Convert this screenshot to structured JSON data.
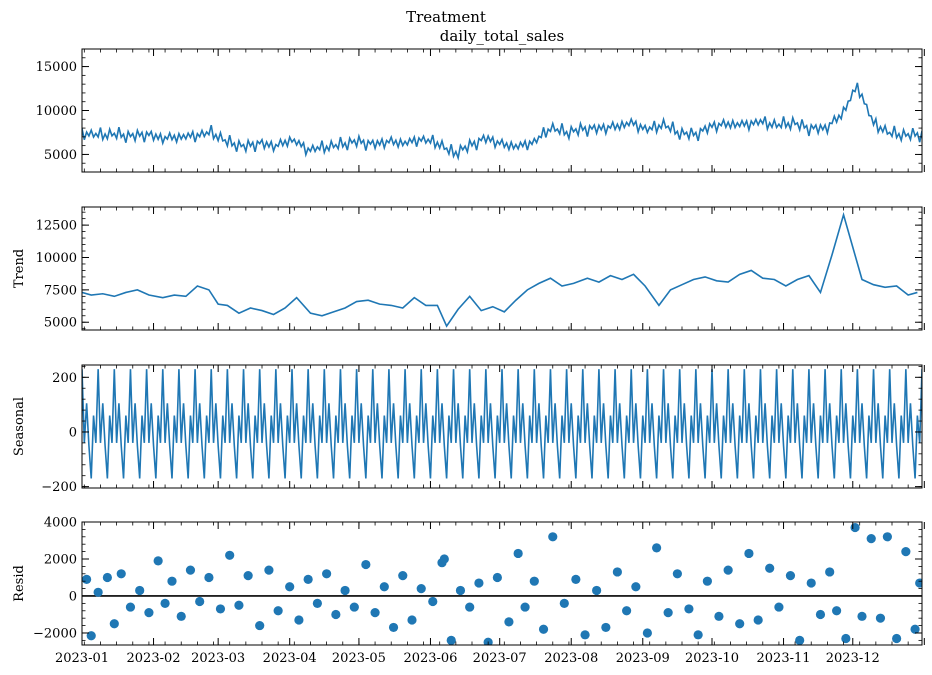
{
  "figure": {
    "suptitle": "Treatment",
    "series_title": "daily_total_sales"
  },
  "colors": {
    "line": "#1f77b4",
    "axis": "#000000",
    "zero_line": "#000000"
  },
  "chart_data": [
    {
      "type": "line",
      "title": "daily_total_sales",
      "xlabel": "",
      "ylabel": "",
      "ylim": [
        3000,
        17000
      ],
      "yticks": [
        5000,
        10000,
        15000
      ],
      "ytick_labels": [
        "5000",
        "10000",
        "15000"
      ],
      "x_range": [
        "2023-01-01",
        "2023-12-31"
      ],
      "series": [
        {
          "resolution": "weekly mean",
          "x": [
            "2023-01-01",
            "2023-01-08",
            "2023-01-15",
            "2023-01-22",
            "2023-01-29",
            "2023-02-05",
            "2023-02-12",
            "2023-02-19",
            "2023-02-26",
            "2023-03-05",
            "2023-03-12",
            "2023-03-19",
            "2023-03-26",
            "2023-04-02",
            "2023-04-09",
            "2023-04-16",
            "2023-04-23",
            "2023-04-30",
            "2023-05-07",
            "2023-05-14",
            "2023-05-21",
            "2023-05-28",
            "2023-06-04",
            "2023-06-11",
            "2023-06-18",
            "2023-06-25",
            "2023-07-02",
            "2023-07-09",
            "2023-07-16",
            "2023-07-23",
            "2023-07-30",
            "2023-08-06",
            "2023-08-13",
            "2023-08-20",
            "2023-08-27",
            "2023-09-03",
            "2023-09-10",
            "2023-09-17",
            "2023-09-24",
            "2023-10-01",
            "2023-10-08",
            "2023-10-15",
            "2023-10-22",
            "2023-10-29",
            "2023-11-05",
            "2023-11-12",
            "2023-11-19",
            "2023-11-26",
            "2023-12-03",
            "2023-12-10",
            "2023-12-17",
            "2023-12-24",
            "2023-12-31"
          ],
          "values": [
            7400,
            7200,
            7300,
            7100,
            7300,
            6900,
            7000,
            7100,
            7500,
            6400,
            5900,
            6300,
            6000,
            6700,
            5500,
            5800,
            6100,
            6500,
            6200,
            6500,
            6300,
            6700,
            6300,
            5100,
            6000,
            6900,
            6200,
            5900,
            6400,
            8000,
            7500,
            7900,
            8000,
            8200,
            8600,
            7800,
            8400,
            7400,
            7300,
            8300,
            8500,
            8400,
            8700,
            8300,
            8600,
            8000,
            8000,
            9500,
            12800,
            8500,
            7400,
            7200,
            7300
          ]
        }
      ]
    },
    {
      "type": "line",
      "title": "",
      "xlabel": "",
      "ylabel": "Trend",
      "ylim": [
        4400,
        13900
      ],
      "yticks": [
        5000,
        7500,
        10000,
        12500
      ],
      "ytick_labels": [
        "5000",
        "7500",
        "10000",
        "12500"
      ],
      "x_range": [
        "2023-01-01",
        "2023-12-31"
      ],
      "series": [
        {
          "x": [
            "2023-01-01",
            "2023-01-05",
            "2023-01-10",
            "2023-01-15",
            "2023-01-20",
            "2023-01-25",
            "2023-01-30",
            "2023-02-05",
            "2023-02-10",
            "2023-02-15",
            "2023-02-20",
            "2023-02-25",
            "2023-03-01",
            "2023-03-05",
            "2023-03-10",
            "2023-03-15",
            "2023-03-20",
            "2023-03-25",
            "2023-03-30",
            "2023-04-04",
            "2023-04-10",
            "2023-04-15",
            "2023-04-20",
            "2023-04-25",
            "2023-04-30",
            "2023-05-05",
            "2023-05-10",
            "2023-05-15",
            "2023-05-20",
            "2023-05-25",
            "2023-05-30",
            "2023-06-04",
            "2023-06-08",
            "2023-06-13",
            "2023-06-18",
            "2023-06-23",
            "2023-06-28",
            "2023-07-03",
            "2023-07-08",
            "2023-07-13",
            "2023-07-18",
            "2023-07-23",
            "2023-07-28",
            "2023-08-02",
            "2023-08-08",
            "2023-08-13",
            "2023-08-18",
            "2023-08-23",
            "2023-08-28",
            "2023-09-02",
            "2023-09-08",
            "2023-09-13",
            "2023-09-18",
            "2023-09-23",
            "2023-09-28",
            "2023-10-03",
            "2023-10-08",
            "2023-10-13",
            "2023-10-18",
            "2023-10-23",
            "2023-10-28",
            "2023-11-02",
            "2023-11-07",
            "2023-11-12",
            "2023-11-17",
            "2023-11-22",
            "2023-11-27",
            "2023-12-01",
            "2023-12-05",
            "2023-12-10",
            "2023-12-15",
            "2023-12-20",
            "2023-12-25",
            "2023-12-29"
          ],
          "values": [
            7300,
            7100,
            7200,
            7000,
            7300,
            7500,
            7100,
            6900,
            7100,
            7000,
            7800,
            7500,
            6400,
            6300,
            5700,
            6100,
            5900,
            5600,
            6100,
            6900,
            5700,
            5500,
            5800,
            6100,
            6600,
            6700,
            6400,
            6300,
            6100,
            6900,
            6300,
            6300,
            4700,
            6000,
            7000,
            5900,
            6200,
            5800,
            6700,
            7500,
            8000,
            8400,
            7800,
            8000,
            8400,
            8100,
            8600,
            8300,
            8700,
            7800,
            6300,
            7500,
            7900,
            8300,
            8500,
            8200,
            8100,
            8700,
            9000,
            8400,
            8300,
            7800,
            8300,
            8600,
            7300,
            10200,
            13300,
            10800,
            8300,
            7900,
            7700,
            7800,
            7100,
            7300
          ]
        }
      ]
    },
    {
      "type": "line",
      "title": "",
      "xlabel": "",
      "ylabel": "Seasonal",
      "ylim": [
        -205,
        245
      ],
      "yticks": [
        -200,
        0,
        200
      ],
      "ytick_labels": [
        "−200",
        "0",
        "200"
      ],
      "x_range": [
        "2023-01-01",
        "2023-12-31"
      ],
      "period_days": 7,
      "series": [
        {
          "pattern": [
            230,
            -40,
            105,
            -50,
            -170,
            60,
            -40
          ]
        }
      ]
    },
    {
      "type": "scatter",
      "title": "",
      "xlabel": "",
      "ylabel": "Resid",
      "ylim": [
        -2650,
        4000
      ],
      "yticks": [
        -2000,
        0,
        2000,
        4000
      ],
      "ytick_labels": [
        "−2000",
        "0",
        "2000",
        "4000"
      ],
      "x_range": [
        "2023-01-01",
        "2023-12-31"
      ],
      "reference_line": 0,
      "xtick_labels": [
        "2023-01",
        "2023-02",
        "2023-03",
        "2023-04",
        "2023-05",
        "2023-06",
        "2023-07",
        "2023-08",
        "2023-09",
        "2023-10",
        "2023-11",
        "2023-12"
      ],
      "xticks": [
        "2023-01-01",
        "2023-02-01",
        "2023-03-01",
        "2023-04-01",
        "2023-05-01",
        "2023-06-01",
        "2023-07-01",
        "2023-08-01",
        "2023-09-01",
        "2023-10-01",
        "2023-11-01",
        "2023-12-01"
      ],
      "series": [
        {
          "x": [
            "2023-01-03",
            "2023-01-05",
            "2023-01-08",
            "2023-01-12",
            "2023-01-15",
            "2023-01-18",
            "2023-01-22",
            "2023-01-26",
            "2023-01-30",
            "2023-02-03",
            "2023-02-06",
            "2023-02-09",
            "2023-02-13",
            "2023-02-17",
            "2023-02-21",
            "2023-02-25",
            "2023-03-02",
            "2023-03-06",
            "2023-03-10",
            "2023-03-14",
            "2023-03-19",
            "2023-03-23",
            "2023-03-27",
            "2023-04-01",
            "2023-04-05",
            "2023-04-09",
            "2023-04-13",
            "2023-04-17",
            "2023-04-21",
            "2023-04-25",
            "2023-04-29",
            "2023-05-04",
            "2023-05-08",
            "2023-05-12",
            "2023-05-16",
            "2023-05-20",
            "2023-05-24",
            "2023-05-28",
            "2023-06-02",
            "2023-06-06",
            "2023-06-07",
            "2023-06-10",
            "2023-06-14",
            "2023-06-18",
            "2023-06-22",
            "2023-06-26",
            "2023-06-30",
            "2023-07-05",
            "2023-07-09",
            "2023-07-12",
            "2023-07-16",
            "2023-07-20",
            "2023-07-24",
            "2023-07-29",
            "2023-08-03",
            "2023-08-07",
            "2023-08-12",
            "2023-08-16",
            "2023-08-21",
            "2023-08-25",
            "2023-08-29",
            "2023-09-03",
            "2023-09-07",
            "2023-09-12",
            "2023-09-16",
            "2023-09-21",
            "2023-09-25",
            "2023-09-29",
            "2023-10-04",
            "2023-10-08",
            "2023-10-13",
            "2023-10-17",
            "2023-10-21",
            "2023-10-26",
            "2023-10-30",
            "2023-11-04",
            "2023-11-08",
            "2023-11-13",
            "2023-11-17",
            "2023-11-21",
            "2023-11-24",
            "2023-11-28",
            "2023-12-02",
            "2023-12-05",
            "2023-12-09",
            "2023-12-13",
            "2023-12-16",
            "2023-12-20",
            "2023-12-24",
            "2023-12-28",
            "2023-12-30"
          ],
          "values": [
            900,
            -2150,
            200,
            1000,
            -1500,
            1200,
            -600,
            300,
            -900,
            1900,
            -400,
            800,
            -1100,
            1400,
            -300,
            1000,
            -700,
            2200,
            -500,
            1100,
            -1600,
            1400,
            -800,
            500,
            -1300,
            900,
            -400,
            1200,
            -1000,
            300,
            -600,
            1700,
            -900,
            500,
            -1700,
            1100,
            -1300,
            400,
            -300,
            1800,
            2000,
            -2400,
            300,
            -600,
            700,
            -2500,
            1000,
            -1400,
            2300,
            -600,
            800,
            -1800,
            3200,
            -400,
            900,
            -2100,
            300,
            -1700,
            1300,
            -800,
            500,
            -2000,
            2600,
            -900,
            1200,
            -700,
            -2100,
            800,
            -1100,
            1400,
            -1500,
            2300,
            -1300,
            1500,
            -600,
            1100,
            -2400,
            700,
            -1000,
            1300,
            -800,
            -2300,
            3700,
            -1100,
            3100,
            -1200,
            3200,
            -2300,
            2400,
            -1800,
            700
          ]
        }
      ]
    }
  ]
}
